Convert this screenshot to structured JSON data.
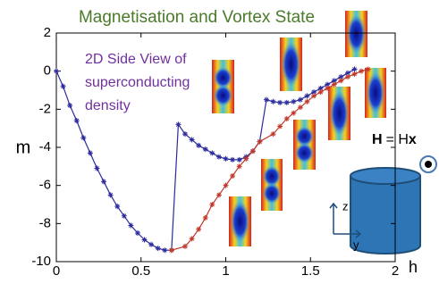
{
  "chart_data": {
    "type": "line",
    "title": "Magnetisation and Vortex State",
    "annotation_lines": [
      "2D Side View of",
      "superconducting",
      "density"
    ],
    "ylabel": "m",
    "xlabel": "h",
    "field_label": [
      "H",
      "= H",
      "x"
    ],
    "axis_labels_3d": [
      "z",
      "y"
    ],
    "xlim": [
      0,
      2
    ],
    "ylim": [
      -10,
      2
    ],
    "xticks": [
      0,
      0.5,
      1,
      1.5,
      2
    ],
    "yticks": [
      2,
      0,
      -2,
      -4,
      -6,
      -8,
      -10
    ],
    "series": [
      {
        "color": "#2b2b9e",
        "x": [
          0,
          0.04,
          0.08,
          0.12,
          0.16,
          0.2,
          0.24,
          0.28,
          0.32,
          0.36,
          0.4,
          0.44,
          0.48,
          0.52,
          0.56,
          0.6,
          0.64,
          0.68,
          0.72,
          0.76,
          0.8,
          0.84,
          0.88,
          0.92,
          0.96,
          1.0,
          1.04,
          1.08,
          1.12,
          1.16,
          1.2,
          1.24,
          1.28,
          1.32,
          1.36,
          1.4,
          1.44,
          1.48,
          1.52,
          1.56,
          1.6,
          1.64,
          1.68,
          1.72,
          1.76
        ],
        "values": [
          0,
          -0.8,
          -1.8,
          -2.6,
          -3.5,
          -4.3,
          -5.1,
          -5.8,
          -6.5,
          -7.1,
          -7.6,
          -8.1,
          -8.5,
          -8.85,
          -9.1,
          -9.3,
          -9.4,
          -9.4,
          -2.8,
          -3.3,
          -3.6,
          -3.9,
          -4.1,
          -4.3,
          -4.5,
          -4.6,
          -4.65,
          -4.65,
          -4.5,
          -4.2,
          -3.7,
          -1.5,
          -1.6,
          -1.65,
          -1.65,
          -1.6,
          -1.5,
          -1.3,
          -1.1,
          -0.9,
          -0.7,
          -0.5,
          -0.3,
          -0.1,
          0.1
        ]
      },
      {
        "color": "#c0392b",
        "x": [
          0.68,
          0.76,
          0.8,
          0.84,
          0.88,
          0.92,
          0.96,
          1.0,
          1.04,
          1.08,
          1.12,
          1.16,
          1.2,
          1.28,
          1.32,
          1.36,
          1.4,
          1.44,
          1.48,
          1.52,
          1.56,
          1.6,
          1.64,
          1.68,
          1.72,
          1.76,
          1.8,
          1.84
        ],
        "values": [
          -9.4,
          -9.2,
          -8.8,
          -8.3,
          -7.7,
          -7.0,
          -6.5,
          -6.0,
          -5.5,
          -5.0,
          -4.6,
          -4.2,
          -3.7,
          -3.3,
          -2.9,
          -2.5,
          -2.2,
          -1.9,
          -1.6,
          -1.3,
          -1.1,
          -0.9,
          -0.7,
          -0.5,
          -0.3,
          -0.15,
          0,
          0.1
        ]
      }
    ]
  }
}
